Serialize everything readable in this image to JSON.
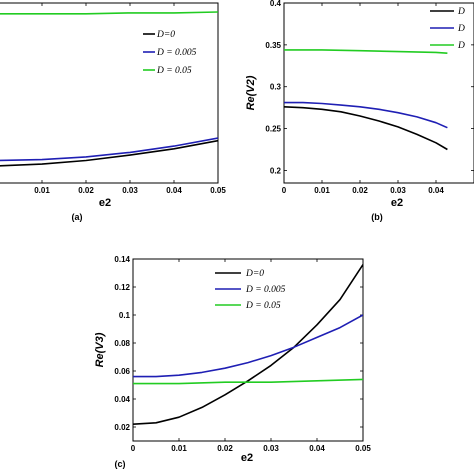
{
  "chart_data": [
    {
      "panel": "a",
      "type": "line",
      "caption": "(a)",
      "xlabel": "e2",
      "ylabel": "",
      "xlim": [
        0,
        0.05
      ],
      "ylim": [
        0.2,
        0.4
      ],
      "xticks": [
        "0.01",
        "0.02",
        "0.03",
        "0.04",
        "0.05"
      ],
      "xtick_values": [
        0.01,
        0.02,
        0.03,
        0.04,
        0.05
      ],
      "yticks": [],
      "legend_position": "right",
      "series": [
        {
          "name": "D=0",
          "color": "#000000",
          "x": [
            0,
            0.01,
            0.02,
            0.03,
            0.04,
            0.05
          ],
          "y": [
            0.219,
            0.221,
            0.225,
            0.231,
            0.238,
            0.247
          ]
        },
        {
          "name": "D = 0.005",
          "color": "#1f1fb4",
          "x": [
            0,
            0.01,
            0.02,
            0.03,
            0.04,
            0.05
          ],
          "y": [
            0.225,
            0.226,
            0.229,
            0.234,
            0.241,
            0.25
          ]
        },
        {
          "name": "D = 0.05",
          "color": "#22cc22",
          "x": [
            0,
            0.01,
            0.02,
            0.03,
            0.04,
            0.05
          ],
          "y": [
            0.388,
            0.388,
            0.388,
            0.389,
            0.389,
            0.39
          ]
        }
      ]
    },
    {
      "panel": "b",
      "type": "line",
      "caption": "(b)",
      "xlabel": "e2",
      "ylabel": "Re(V2)",
      "xlim": [
        0,
        0.05
      ],
      "ylim": [
        0.185,
        0.4
      ],
      "xticks": [
        "0",
        "0.01",
        "0.02",
        "0.03",
        "0.04"
      ],
      "xtick_values": [
        0,
        0.01,
        0.02,
        0.03,
        0.04
      ],
      "yticks": [
        "0.2",
        "0.25",
        "0.3",
        "0.35",
        "0.4"
      ],
      "ytick_values": [
        0.2,
        0.25,
        0.3,
        0.35,
        0.4
      ],
      "legend_position": "top-right",
      "series": [
        {
          "name": "D",
          "color": "#000000",
          "x": [
            0,
            0.005,
            0.01,
            0.015,
            0.02,
            0.025,
            0.03,
            0.035,
            0.04,
            0.043
          ],
          "y": [
            0.276,
            0.275,
            0.273,
            0.27,
            0.265,
            0.259,
            0.252,
            0.243,
            0.233,
            0.225
          ]
        },
        {
          "name": "D",
          "color": "#1f1fb4",
          "x": [
            0,
            0.005,
            0.01,
            0.015,
            0.02,
            0.025,
            0.03,
            0.035,
            0.04,
            0.043
          ],
          "y": [
            0.281,
            0.281,
            0.28,
            0.278,
            0.276,
            0.273,
            0.269,
            0.264,
            0.257,
            0.251
          ]
        },
        {
          "name": "D",
          "color": "#22cc22",
          "x": [
            0,
            0.01,
            0.02,
            0.03,
            0.04,
            0.043
          ],
          "y": [
            0.344,
            0.344,
            0.343,
            0.342,
            0.341,
            0.34
          ]
        }
      ]
    },
    {
      "panel": "c",
      "type": "line",
      "caption": "(c)",
      "xlabel": "e2",
      "ylabel": "Re(V3)",
      "xlim": [
        0,
        0.05
      ],
      "ylim": [
        0.01,
        0.14
      ],
      "xticks": [
        "0",
        "0.01",
        "0.02",
        "0.03",
        "0.04",
        "0.05"
      ],
      "xtick_values": [
        0,
        0.01,
        0.02,
        0.03,
        0.04,
        0.05
      ],
      "yticks": [
        "0.02",
        "0.04",
        "0.06",
        "0.08",
        "0.1",
        "0.12",
        "0.14"
      ],
      "ytick_values": [
        0.02,
        0.04,
        0.06,
        0.08,
        0.1,
        0.12,
        0.14
      ],
      "legend_position": "top-left",
      "series": [
        {
          "name": "D=0",
          "color": "#000000",
          "x": [
            0,
            0.005,
            0.01,
            0.015,
            0.02,
            0.025,
            0.03,
            0.035,
            0.04,
            0.045,
            0.05
          ],
          "y": [
            0.022,
            0.023,
            0.027,
            0.034,
            0.043,
            0.053,
            0.064,
            0.077,
            0.093,
            0.111,
            0.136
          ]
        },
        {
          "name": "D = 0.005",
          "color": "#1f1fb4",
          "x": [
            0,
            0.005,
            0.01,
            0.015,
            0.02,
            0.025,
            0.03,
            0.035,
            0.04,
            0.045,
            0.05
          ],
          "y": [
            0.056,
            0.056,
            0.057,
            0.059,
            0.062,
            0.066,
            0.071,
            0.077,
            0.084,
            0.091,
            0.1
          ]
        },
        {
          "name": "D = 0.05",
          "color": "#22cc22",
          "x": [
            0,
            0.01,
            0.02,
            0.03,
            0.04,
            0.05
          ],
          "y": [
            0.051,
            0.051,
            0.052,
            0.052,
            0.053,
            0.054
          ]
        }
      ]
    }
  ]
}
